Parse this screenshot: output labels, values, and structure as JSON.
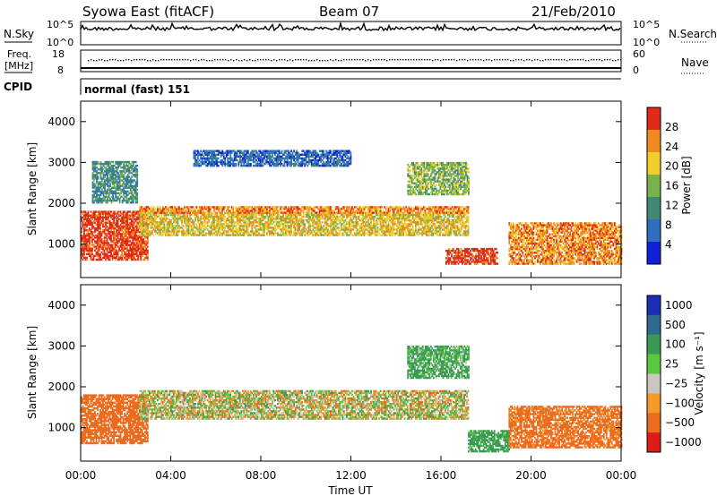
{
  "header": {
    "station": "Syowa East (fitACF)",
    "beam": "Beam 07",
    "date": "21/Feb/2010"
  },
  "summary_panels": {
    "nsky": {
      "label": "N.Sky",
      "tick_top": "10^5",
      "tick_bottom": "10^0"
    },
    "nsearch": {
      "label": "N.Search",
      "tick_top": "10^5",
      "tick_bottom": "10^0"
    },
    "freq": {
      "label_line1": "Freq.",
      "label_line2": "[MHz]",
      "tick_top": "18",
      "tick_bottom": "8"
    },
    "nave": {
      "label": "Nave",
      "tick_top": "60",
      "tick_bottom": "0"
    },
    "cpid": {
      "label": "CPID",
      "program": "normal (fast) 151"
    }
  },
  "chart_data": [
    {
      "type": "heatmap",
      "name": "power",
      "ylabel": "Slant Range [km]",
      "xlabel": "",
      "xlim": [
        "00:00",
        "24:00"
      ],
      "ylim": [
        180,
        4500
      ],
      "y_ticks": [
        1000,
        2000,
        3000,
        4000
      ],
      "colorbar": {
        "label": "Power [dB]",
        "ticks": [
          "4",
          "8",
          "12",
          "16",
          "20",
          "24",
          "28"
        ],
        "colors": [
          "#1020d8",
          "#2d6fc0",
          "#3f8a76",
          "#79b24d",
          "#f2ce2a",
          "#f08a1e",
          "#e02a1a"
        ]
      },
      "echo_regions": [
        {
          "t": [
            0.0,
            3.0
          ],
          "range": [
            600,
            1800
          ],
          "level": 26
        },
        {
          "t": [
            2.6,
            17.2
          ],
          "range": [
            1200,
            1750
          ],
          "level": 18
        },
        {
          "t": [
            2.6,
            17.2
          ],
          "range": [
            1750,
            1900
          ],
          "level": 22
        },
        {
          "t": [
            0.5,
            2.5
          ],
          "range": [
            2000,
            3000
          ],
          "level": 10
        },
        {
          "t": [
            5.0,
            12.0
          ],
          "range": [
            2900,
            3300
          ],
          "level": 6
        },
        {
          "t": [
            14.5,
            17.2
          ],
          "range": [
            2200,
            3000
          ],
          "level": 14
        },
        {
          "t": [
            16.2,
            18.5
          ],
          "range": [
            500,
            900
          ],
          "level": 26
        },
        {
          "t": [
            19.0,
            24.0
          ],
          "range": [
            500,
            1500
          ],
          "level": 24
        }
      ]
    },
    {
      "type": "heatmap",
      "name": "velocity",
      "ylabel": "Slant Range [km]",
      "xlabel": "Time UT",
      "xlim": [
        "00:00",
        "24:00"
      ],
      "ylim": [
        180,
        4500
      ],
      "y_ticks": [
        1000,
        2000,
        3000,
        4000
      ],
      "x_ticks": [
        "00:00",
        "04:00",
        "08:00",
        "12:00",
        "16:00",
        "20:00",
        "00:00"
      ],
      "colorbar": {
        "label": "Velocity [m s⁻¹]",
        "ticks": [
          "1000",
          "500",
          "100",
          "25",
          "−25",
          "−100",
          "−500",
          "−1000"
        ],
        "colors": [
          "#1a2fb8",
          "#2e6a8e",
          "#3a9a55",
          "#59c840",
          "#c8c8c0",
          "#f39a2a",
          "#ee6a1c",
          "#dd1e18"
        ]
      },
      "echo_regions": [
        {
          "t": [
            0.0,
            3.0
          ],
          "range": [
            600,
            1800
          ],
          "velocity": -300
        },
        {
          "t": [
            2.6,
            17.2
          ],
          "range": [
            1200,
            1900
          ],
          "velocity": 0
        },
        {
          "t": [
            14.5,
            17.2
          ],
          "range": [
            2200,
            3000
          ],
          "velocity": 150
        },
        {
          "t": [
            17.2,
            19.0
          ],
          "range": [
            400,
            900
          ],
          "velocity": 200
        },
        {
          "t": [
            19.0,
            24.0
          ],
          "range": [
            500,
            1500
          ],
          "velocity": -200
        }
      ]
    }
  ]
}
